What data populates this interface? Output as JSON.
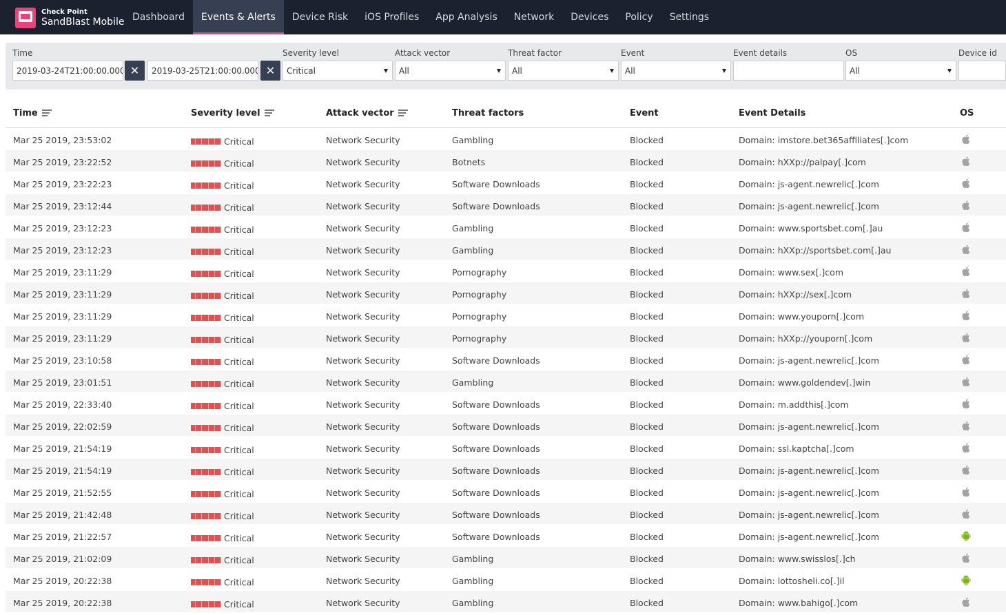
{
  "app": {
    "brand_top": "Check Point",
    "brand_name": "SandBlast Mobile"
  },
  "nav": [
    "Dashboard",
    "Events & Alerts",
    "Device Risk",
    "iOS Profiles",
    "App Analysis",
    "Network",
    "Devices",
    "Policy",
    "Settings"
  ],
  "active_nav": "Events & Alerts",
  "colors": {
    "topbar": "#1c2130",
    "accent": "#e8447a",
    "critical": "#e05252",
    "android": "#7cb518"
  },
  "filters": {
    "time_label": "Time",
    "time_from": "2019-03-24T21:00:00.000",
    "time_to": "2019-03-25T21:00:00.000",
    "severity_label": "Severity level",
    "severity_value": "Critical",
    "attack_label": "Attack vector",
    "attack_value": "All",
    "threat_label": "Threat factor",
    "threat_value": "All",
    "event_label": "Event",
    "event_value": "All",
    "details_label": "Event details",
    "details_value": "",
    "os_label": "OS",
    "os_value": "All",
    "device_label": "Device id",
    "device_value": ""
  },
  "columns": {
    "time": "Time",
    "severity": "Severity level",
    "attack": "Attack vector",
    "threat": "Threat factors",
    "event": "Event",
    "details": "Event Details",
    "os": "OS"
  },
  "rows": [
    {
      "time": "Mar 25 2019, 23:53:02",
      "severity": "Critical",
      "attack": "Network Security",
      "threat": "Gambling",
      "event": "Blocked",
      "details": "Domain: imstore.bet365affiliates[.]com",
      "os": "apple"
    },
    {
      "time": "Mar 25 2019, 23:22:52",
      "severity": "Critical",
      "attack": "Network Security",
      "threat": "Botnets",
      "event": "Blocked",
      "details": "Domain: hXXp://palpay[.]com",
      "os": "apple"
    },
    {
      "time": "Mar 25 2019, 23:22:23",
      "severity": "Critical",
      "attack": "Network Security",
      "threat": "Software Downloads",
      "event": "Blocked",
      "details": "Domain: js-agent.newrelic[.]com",
      "os": "apple"
    },
    {
      "time": "Mar 25 2019, 23:12:44",
      "severity": "Critical",
      "attack": "Network Security",
      "threat": "Software Downloads",
      "event": "Blocked",
      "details": "Domain: js-agent.newrelic[.]com",
      "os": "apple"
    },
    {
      "time": "Mar 25 2019, 23:12:23",
      "severity": "Critical",
      "attack": "Network Security",
      "threat": "Gambling",
      "event": "Blocked",
      "details": "Domain: www.sportsbet.com[.]au",
      "os": "apple"
    },
    {
      "time": "Mar 25 2019, 23:12:23",
      "severity": "Critical",
      "attack": "Network Security",
      "threat": "Gambling",
      "event": "Blocked",
      "details": "Domain: hXXp://sportsbet.com[.]au",
      "os": "apple"
    },
    {
      "time": "Mar 25 2019, 23:11:29",
      "severity": "Critical",
      "attack": "Network Security",
      "threat": "Pornography",
      "event": "Blocked",
      "details": "Domain: www.sex[.]com",
      "os": "apple"
    },
    {
      "time": "Mar 25 2019, 23:11:29",
      "severity": "Critical",
      "attack": "Network Security",
      "threat": "Pornography",
      "event": "Blocked",
      "details": "Domain: hXXp://sex[.]com",
      "os": "apple"
    },
    {
      "time": "Mar 25 2019, 23:11:29",
      "severity": "Critical",
      "attack": "Network Security",
      "threat": "Pornography",
      "event": "Blocked",
      "details": "Domain: www.youporn[.]com",
      "os": "apple"
    },
    {
      "time": "Mar 25 2019, 23:11:29",
      "severity": "Critical",
      "attack": "Network Security",
      "threat": "Pornography",
      "event": "Blocked",
      "details": "Domain: hXXp://youporn[.]com",
      "os": "apple"
    },
    {
      "time": "Mar 25 2019, 23:10:58",
      "severity": "Critical",
      "attack": "Network Security",
      "threat": "Software Downloads",
      "event": "Blocked",
      "details": "Domain: js-agent.newrelic[.]com",
      "os": "apple"
    },
    {
      "time": "Mar 25 2019, 23:01:51",
      "severity": "Critical",
      "attack": "Network Security",
      "threat": "Gambling",
      "event": "Blocked",
      "details": "Domain: www.goldendev[.]win",
      "os": "apple"
    },
    {
      "time": "Mar 25 2019, 22:33:40",
      "severity": "Critical",
      "attack": "Network Security",
      "threat": "Software Downloads",
      "event": "Blocked",
      "details": "Domain: m.addthis[.]com",
      "os": "apple"
    },
    {
      "time": "Mar 25 2019, 22:02:59",
      "severity": "Critical",
      "attack": "Network Security",
      "threat": "Software Downloads",
      "event": "Blocked",
      "details": "Domain: js-agent.newrelic[.]com",
      "os": "apple"
    },
    {
      "time": "Mar 25 2019, 21:54:19",
      "severity": "Critical",
      "attack": "Network Security",
      "threat": "Software Downloads",
      "event": "Blocked",
      "details": "Domain: ssl.kaptcha[.]com",
      "os": "apple"
    },
    {
      "time": "Mar 25 2019, 21:54:19",
      "severity": "Critical",
      "attack": "Network Security",
      "threat": "Software Downloads",
      "event": "Blocked",
      "details": "Domain: js-agent.newrelic[.]com",
      "os": "apple"
    },
    {
      "time": "Mar 25 2019, 21:52:55",
      "severity": "Critical",
      "attack": "Network Security",
      "threat": "Software Downloads",
      "event": "Blocked",
      "details": "Domain: js-agent.newrelic[.]com",
      "os": "apple"
    },
    {
      "time": "Mar 25 2019, 21:42:48",
      "severity": "Critical",
      "attack": "Network Security",
      "threat": "Software Downloads",
      "event": "Blocked",
      "details": "Domain: js-agent.newrelic[.]com",
      "os": "apple"
    },
    {
      "time": "Mar 25 2019, 21:22:57",
      "severity": "Critical",
      "attack": "Network Security",
      "threat": "Software Downloads",
      "event": "Blocked",
      "details": "Domain: js-agent.newrelic[.]com",
      "os": "android"
    },
    {
      "time": "Mar 25 2019, 21:02:09",
      "severity": "Critical",
      "attack": "Network Security",
      "threat": "Gambling",
      "event": "Blocked",
      "details": "Domain: www.swisslos[.]ch",
      "os": "apple"
    },
    {
      "time": "Mar 25 2019, 20:22:38",
      "severity": "Critical",
      "attack": "Network Security",
      "threat": "Gambling",
      "event": "Blocked",
      "details": "Domain: lottosheli.co[.]il",
      "os": "android"
    },
    {
      "time": "Mar 25 2019, 20:22:38",
      "severity": "Critical",
      "attack": "Network Security",
      "threat": "Gambling",
      "event": "Blocked",
      "details": "Domain: www.bahigo[.]com",
      "os": "apple"
    }
  ]
}
